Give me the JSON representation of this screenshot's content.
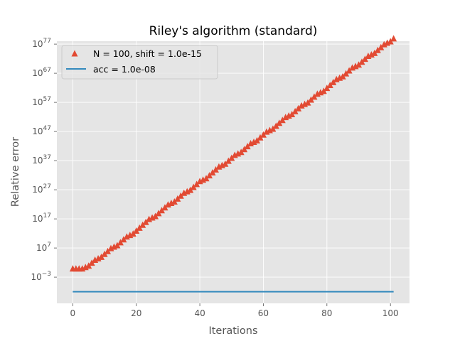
{
  "chart_data": {
    "type": "line",
    "title": "Riley's algorithm (standard)",
    "xlabel": "Iterations",
    "ylabel": "Relative error",
    "x_ticks": [
      0,
      20,
      40,
      60,
      80,
      100
    ],
    "y_ticks": [
      {
        "exp": -3,
        "base": "10",
        "sup": "−3"
      },
      {
        "exp": 7,
        "base": "10",
        "sup": "7"
      },
      {
        "exp": 17,
        "base": "10",
        "sup": "17"
      },
      {
        "exp": 27,
        "base": "10",
        "sup": "27"
      },
      {
        "exp": 37,
        "base": "10",
        "sup": "37"
      },
      {
        "exp": 47,
        "base": "10",
        "sup": "47"
      },
      {
        "exp": 57,
        "base": "10",
        "sup": "57"
      },
      {
        "exp": 67,
        "base": "10",
        "sup": "67"
      },
      {
        "exp": 77,
        "base": "10",
        "sup": "77"
      }
    ],
    "xlim": [
      -5,
      106
    ],
    "ylim_log10": [
      -12,
      78
    ],
    "y_scale": "log",
    "grid": true,
    "legend_position": "top-left",
    "series": [
      {
        "name": "N = 100, shift = 1.0e-15",
        "marker": "triangle",
        "color": "#E24A33",
        "x_start": 0,
        "x_end": 101,
        "log10_y": [
          0.0,
          0.0,
          0.0,
          0.0,
          0.5,
          1.0,
          2.0,
          3.0,
          3.5,
          4.0,
          5.0,
          6.0,
          7.0,
          7.5,
          8.0,
          9.0,
          10.0,
          11.0,
          11.5,
          12.0,
          13.0,
          14.0,
          15.0,
          16.0,
          17.0,
          17.5,
          18.0,
          19.0,
          20.0,
          21.0,
          22.0,
          22.5,
          23.0,
          24.0,
          25.0,
          26.0,
          26.5,
          27.0,
          28.0,
          29.0,
          30.0,
          30.5,
          31.0,
          32.0,
          33.0,
          34.0,
          35.0,
          35.5,
          36.0,
          37.0,
          38.0,
          39.0,
          39.5,
          40.0,
          41.0,
          42.0,
          43.0,
          43.5,
          44.0,
          45.0,
          46.0,
          47.0,
          47.5,
          48.0,
          49.0,
          50.0,
          51.0,
          52.0,
          52.5,
          53.0,
          54.0,
          55.0,
          56.0,
          56.5,
          57.0,
          58.0,
          59.0,
          60.0,
          60.5,
          61.0,
          62.0,
          63.0,
          64.0,
          65.0,
          65.5,
          66.0,
          67.0,
          68.0,
          69.0,
          69.5,
          70.0,
          71.0,
          72.0,
          73.0,
          73.5,
          74.0,
          75.0,
          76.0,
          77.0,
          77.5,
          78.0,
          79.0
        ]
      },
      {
        "name": "acc = 1.0e-08",
        "marker": "line",
        "color": "#348ABD",
        "x": [
          0,
          101
        ],
        "log10_y": [
          -8,
          -8
        ]
      }
    ]
  }
}
